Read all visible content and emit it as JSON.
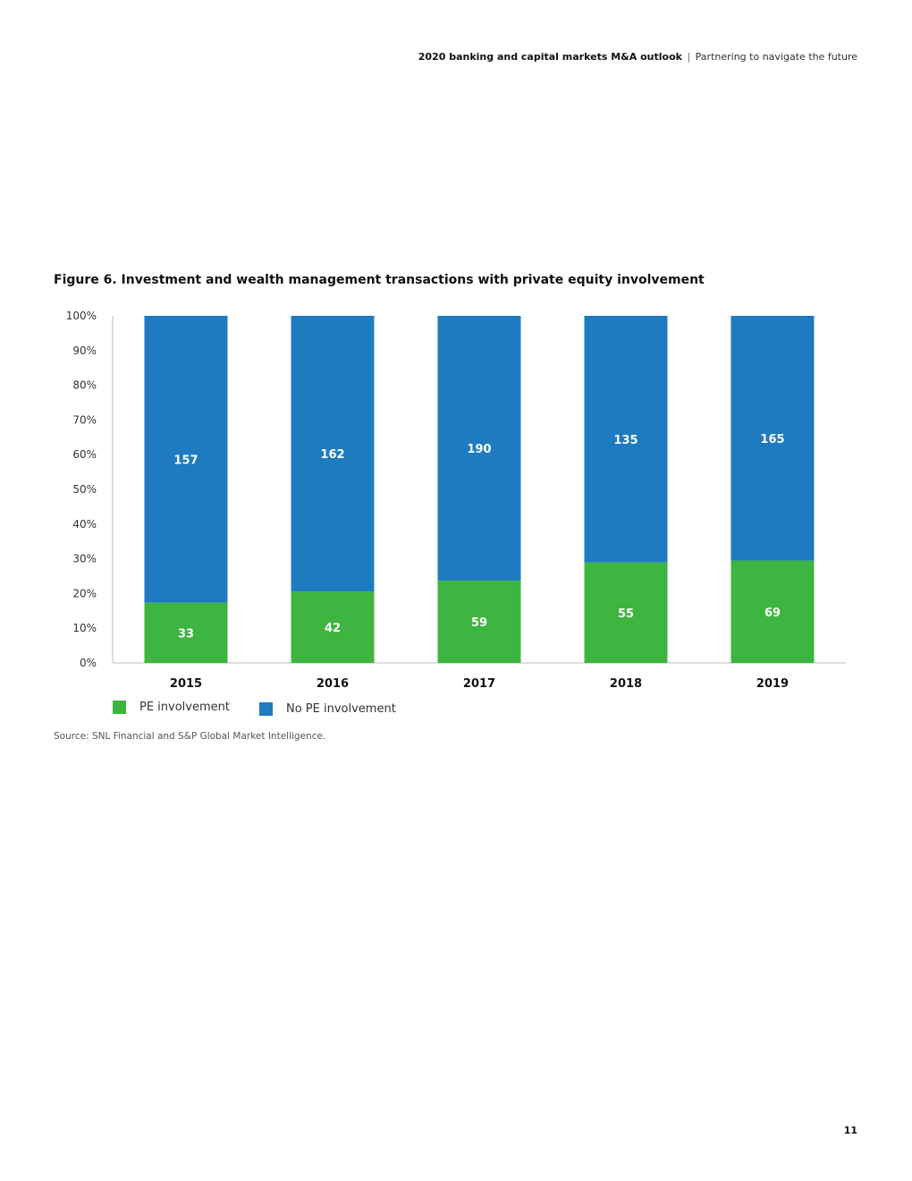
{
  "header": {
    "title_bold": "2020 banking and capital markets M&A outlook",
    "separator": "|",
    "subtitle": "Partnering to navigate the future"
  },
  "figure_title": "Figure 6. Investment and wealth management transactions with private equity involvement",
  "source": "Source: SNL Financial and S&P Global Market Intelligence.",
  "page_number": "11",
  "colors": {
    "pe": "#3db540",
    "no_pe": "#1f7bbf",
    "axis": "#bbbbbb"
  },
  "chart_data": {
    "type": "bar",
    "stacked": true,
    "normalized": true,
    "categories": [
      "2015",
      "2016",
      "2017",
      "2018",
      "2019"
    ],
    "series": [
      {
        "name": "PE involvement",
        "values": [
          33,
          42,
          59,
          55,
          69
        ]
      },
      {
        "name": "No PE involvement",
        "values": [
          157,
          162,
          190,
          135,
          165
        ]
      }
    ],
    "yticks": [
      "0%",
      "10%",
      "20%",
      "30%",
      "40%",
      "50%",
      "60%",
      "70%",
      "80%",
      "90%",
      "100%"
    ],
    "ylim": [
      0,
      100
    ],
    "legend_position": "bottom-left",
    "grid": false
  }
}
